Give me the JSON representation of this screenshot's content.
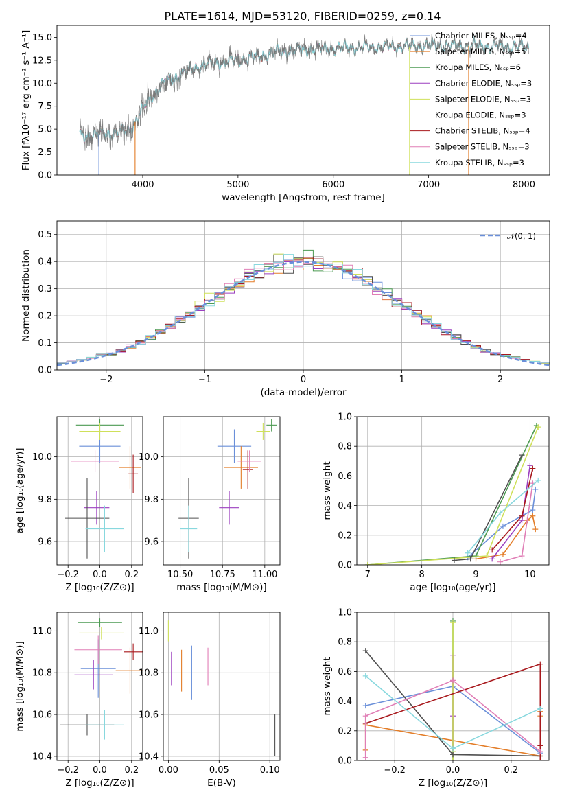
{
  "figure": {
    "title": "PLATE=1614, MJD=53120, FIBERID=0259, z=0.14"
  },
  "colors": [
    "#6a8fd9",
    "#e37d28",
    "#4c9a52",
    "#9b3fbf",
    "#cfe05a",
    "#505050",
    "#a8181c",
    "#e07eb6",
    "#88d8de",
    "#7a7a7a"
  ],
  "legend": {
    "spectrum": [
      "Chabrier MILES, N$_{SSP}$=4",
      "Salpeter MILES, N$_{SSP}$=5",
      "Kroupa MILES, N$_{SSP}$=6",
      "Chabrier ELODIE, N$_{SSP}$=3",
      "Salpeter ELODIE, N$_{SSP}$=3",
      "Kroupa ELODIE, N$_{SSP}$=3",
      "Chabrier STELIB, N$_{SSP}$=4",
      "Salpeter STELIB, N$_{SSP}$=3",
      "Kroupa STELIB, N$_{SSP}$=3"
    ],
    "hist": "$\\mathcal{N}(0,1)$"
  },
  "chart_data": [
    {
      "id": "spectrum",
      "type": "line",
      "xlabel": "wavelength [Angstrom, rest frame]",
      "ylabel": "Flux [$f_\\lambda 10^{-17}$ erg cm$^{-2}$ s$^{-1}$ A$^{-1}$]",
      "xlim": [
        3100,
        8270
      ],
      "ylim": [
        0,
        16.3
      ],
      "xticks": [
        4000,
        5000,
        6000,
        7000,
        8000
      ],
      "yticks": [
        0.0,
        2.5,
        5.0,
        7.5,
        10.0,
        12.5,
        15.0
      ],
      "grid": false,
      "legend_position": "right",
      "continuum": {
        "x": [
          3350,
          3500,
          3700,
          3850,
          3950,
          4050,
          4200,
          4400,
          4600,
          4800,
          5000,
          5200,
          5400,
          5600,
          5800,
          6000,
          6200,
          6400,
          6600,
          6800,
          7000,
          7200,
          7400,
          7600,
          7800,
          8050
        ],
        "y": [
          4.3,
          4.4,
          4.6,
          4.8,
          6.2,
          8.0,
          9.8,
          11.0,
          11.9,
          12.3,
          12.5,
          12.9,
          13.4,
          13.6,
          13.7,
          13.8,
          13.9,
          13.9,
          14.0,
          14.0,
          14.1,
          14.1,
          14.1,
          14.0,
          14.0,
          13.9
        ]
      }
    },
    {
      "id": "residual_hist",
      "type": "step",
      "xlabel": "(data-model)/error",
      "ylabel": "Normed distribution",
      "xlim": [
        -2.5,
        2.5
      ],
      "ylim": [
        0,
        0.55
      ],
      "xticks": [
        -2,
        -1,
        0,
        1,
        2
      ],
      "yticks": [
        0.0,
        0.1,
        0.2,
        0.3,
        0.4,
        0.5
      ],
      "grid": true,
      "legend_position": "upper right",
      "bin_width": 0.1,
      "reference": "gaussian N(0,1)"
    },
    {
      "id": "age_vs_Z",
      "type": "scatter",
      "xlabel": "Z [$\\log_{10}(Z/Z_\\odot)$]",
      "ylabel": "age  [$\\log_{10}(age/yr)$]",
      "xlim": [
        -0.27,
        0.27
      ],
      "ylim": [
        9.49,
        10.19
      ],
      "xticks": [
        -0.2,
        0.0,
        0.2
      ],
      "yticks": [
        9.6,
        9.8,
        10.0
      ],
      "grid": true,
      "points": [
        {
          "x": 0.0,
          "y": 10.05,
          "xerr": 0.13,
          "yerr": 0.08
        },
        {
          "x": 0.19,
          "y": 9.95,
          "xerr": 0.07,
          "yerr": 0.1
        },
        {
          "x": 0.0,
          "y": 10.15,
          "xerr": 0.15,
          "yerr": 0.03
        },
        {
          "x": -0.02,
          "y": 9.76,
          "xerr": 0.08,
          "yerr": 0.08
        },
        {
          "x": 0.0,
          "y": 10.12,
          "xerr": 0.13,
          "yerr": 0.04
        },
        {
          "x": -0.08,
          "y": 9.71,
          "xerr": 0.14,
          "yerr": 0.19
        },
        {
          "x": 0.21,
          "y": 9.92,
          "xerr": 0.03,
          "yerr": 0.09
        },
        {
          "x": -0.03,
          "y": 9.98,
          "xerr": 0.15,
          "yerr": 0.05
        },
        {
          "x": 0.03,
          "y": 9.66,
          "xerr": 0.12,
          "yerr": 0.11
        }
      ]
    },
    {
      "id": "age_vs_mass",
      "type": "scatter",
      "xlabel": "mass [$\\log_{10}(M/M_\\odot)$]",
      "ylabel": "",
      "xlim": [
        10.4,
        11.09
      ],
      "ylim": [
        9.49,
        10.19
      ],
      "xticks": [
        10.5,
        10.75,
        11.0
      ],
      "yticks": [
        9.6,
        9.8,
        10.0
      ],
      "grid": true,
      "points": [
        {
          "x": 10.82,
          "y": 10.05,
          "xerr": 0.1,
          "yerr": 0.08
        },
        {
          "x": 10.86,
          "y": 9.95,
          "xerr": 0.1,
          "yerr": 0.1
        },
        {
          "x": 11.04,
          "y": 10.15,
          "xerr": 0.03,
          "yerr": 0.03
        },
        {
          "x": 10.79,
          "y": 9.76,
          "xerr": 0.06,
          "yerr": 0.08
        },
        {
          "x": 10.99,
          "y": 10.12,
          "xerr": 0.04,
          "yerr": 0.04
        },
        {
          "x": 10.55,
          "y": 9.71,
          "xerr": 0.06,
          "yerr": 0.19
        },
        {
          "x": 10.9,
          "y": 9.94,
          "xerr": 0.03,
          "yerr": 0.09
        },
        {
          "x": 10.91,
          "y": 9.98,
          "xerr": 0.07,
          "yerr": 0.05
        },
        {
          "x": 10.55,
          "y": 9.66,
          "xerr": 0.05,
          "yerr": 0.11
        }
      ]
    },
    {
      "id": "weight_vs_age",
      "type": "line",
      "xlabel": "age  [$\\log_{10}(age/yr)$]",
      "ylabel": "mass weight",
      "xlim": [
        6.8,
        10.35
      ],
      "ylim": [
        0,
        1.0
      ],
      "xticks": [
        7,
        8,
        9,
        10
      ],
      "yticks": [
        0.0,
        0.2,
        0.4,
        0.6,
        0.8,
        1.0
      ],
      "grid": true,
      "series": [
        {
          "x": [
            8.85,
            9.5,
            10.05,
            10.1
          ],
          "y": [
            0.05,
            0.26,
            0.37,
            0.51
          ]
        },
        {
          "x": [
            9.0,
            9.5,
            9.95,
            10.05,
            10.1
          ],
          "y": [
            0.04,
            0.07,
            0.3,
            0.33,
            0.24
          ]
        },
        {
          "x": [
            7.0,
            9.0,
            10.12
          ],
          "y": [
            0.0,
            0.06,
            0.94
          ]
        },
        {
          "x": [
            9.3,
            9.85,
            10.0
          ],
          "y": [
            0.04,
            0.3,
            0.67
          ]
        },
        {
          "x": [
            7.0,
            9.2,
            10.15
          ],
          "y": [
            0.0,
            0.06,
            0.93
          ]
        },
        {
          "x": [
            8.6,
            8.9,
            9.85
          ],
          "y": [
            0.03,
            0.04,
            0.74
          ]
        },
        {
          "x": [
            9.3,
            9.85,
            10.05
          ],
          "y": [
            0.1,
            0.33,
            0.65
          ]
        },
        {
          "x": [
            9.45,
            9.85,
            10.05
          ],
          "y": [
            0.02,
            0.06,
            0.55
          ]
        },
        {
          "x": [
            8.85,
            9.45,
            10.15
          ],
          "y": [
            0.08,
            0.35,
            0.57
          ]
        }
      ]
    },
    {
      "id": "mass_vs_Z",
      "type": "scatter",
      "xlabel": "Z [$\\log_{10}(Z/Z_\\odot)$]",
      "ylabel": "mass [$\\log_{10}(M/M_\\odot)$]",
      "xlim": [
        -0.27,
        0.27
      ],
      "ylim": [
        10.38,
        11.09
      ],
      "xticks": [
        -0.2,
        0.0,
        0.2
      ],
      "yticks": [
        10.4,
        10.6,
        10.8,
        11.0
      ],
      "grid": true,
      "points": [
        {
          "x": -0.01,
          "y": 10.82,
          "xerr": 0.11,
          "yerr": 0.14
        },
        {
          "x": 0.19,
          "y": 10.81,
          "xerr": 0.09,
          "yerr": 0.11
        },
        {
          "x": 0.0,
          "y": 11.04,
          "xerr": 0.14,
          "yerr": 0.02
        },
        {
          "x": -0.04,
          "y": 10.79,
          "xerr": 0.12,
          "yerr": 0.07
        },
        {
          "x": 0.01,
          "y": 10.99,
          "xerr": 0.14,
          "yerr": 0.03
        },
        {
          "x": -0.08,
          "y": 10.55,
          "xerr": 0.17,
          "yerr": 0.05
        },
        {
          "x": 0.21,
          "y": 10.9,
          "xerr": 0.06,
          "yerr": 0.04
        },
        {
          "x": -0.01,
          "y": 10.91,
          "xerr": 0.15,
          "yerr": 0.07
        },
        {
          "x": 0.03,
          "y": 10.55,
          "xerr": 0.12,
          "yerr": 0.07
        }
      ]
    },
    {
      "id": "mass_vs_ebv",
      "type": "scatter",
      "xlabel": "E(B-V)",
      "ylabel": "",
      "xlim": [
        -0.005,
        0.11
      ],
      "ylim": [
        10.38,
        11.09
      ],
      "xticks": [
        0.0,
        0.05,
        0.1
      ],
      "yticks": [
        10.4,
        10.6,
        10.8,
        11.0
      ],
      "grid": true,
      "points": [
        {
          "x": 0.0,
          "y": 11.0,
          "yerr": 0.05
        },
        {
          "x": 0.003,
          "y": 10.82,
          "yerr": 0.08
        },
        {
          "x": 0.013,
          "y": 10.81,
          "yerr": 0.1
        },
        {
          "x": 0.023,
          "y": 10.8,
          "yerr": 0.13
        },
        {
          "x": 0.039,
          "y": 10.83,
          "yerr": 0.09
        },
        {
          "x": 0.105,
          "y": 10.5,
          "yerr": 0.1
        }
      ]
    },
    {
      "id": "weight_vs_Z",
      "type": "line",
      "xlabel": "Z [$\\log_{10}(Z/Z_\\odot)$]",
      "ylabel": "mass weight",
      "xlim": [
        -0.33,
        0.33
      ],
      "ylim": [
        0,
        1.0
      ],
      "xticks": [
        -0.2,
        0.0,
        0.2
      ],
      "yticks": [
        0.0,
        0.2,
        0.4,
        0.6,
        0.8,
        1.0
      ],
      "grid": true,
      "series": [
        {
          "x": [
            -0.3,
            0.0,
            0.3
          ],
          "y": [
            0.37,
            0.5,
            0.05
          ]
        },
        {
          "x": [
            -0.3,
            -0.3,
            0.3,
            0.3,
            0.3
          ],
          "y": [
            0.07,
            0.24,
            0.03,
            0.3,
            0.33
          ]
        },
        {
          "x": [
            0.0,
            0.0,
            0.0
          ],
          "y": [
            0.0,
            0.06,
            0.94
          ]
        },
        {
          "x": [
            0.0,
            0.0,
            0.0
          ],
          "y": [
            0.04,
            0.3,
            0.71
          ]
        },
        {
          "x": [
            0.0,
            0.0,
            0.0
          ],
          "y": [
            0.0,
            0.06,
            0.93
          ]
        },
        {
          "x": [
            -0.3,
            0.0,
            0.3
          ],
          "y": [
            0.74,
            0.04,
            0.03
          ]
        },
        {
          "x": [
            -0.3,
            0.3,
            0.3,
            0.3
          ],
          "y": [
            0.25,
            0.65,
            0.1,
            0.0
          ]
        },
        {
          "x": [
            -0.3,
            -0.3,
            0.0,
            0.3
          ],
          "y": [
            0.02,
            0.3,
            0.54,
            0.06
          ]
        },
        {
          "x": [
            -0.3,
            0.0,
            0.3
          ],
          "y": [
            0.57,
            0.08,
            0.35
          ]
        }
      ]
    }
  ]
}
